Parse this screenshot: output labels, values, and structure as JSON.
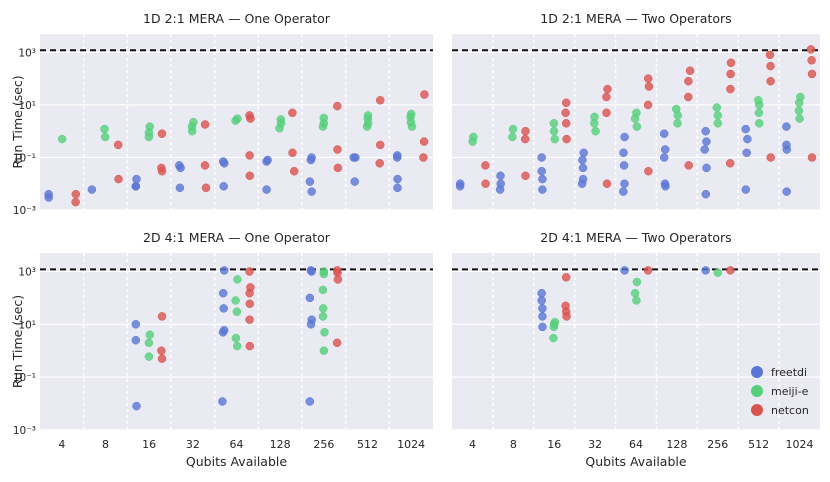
{
  "figure": {
    "threshold_line": 1200,
    "y_tick_labels": [
      "10⁻³",
      "10⁻¹",
      "10¹",
      "10³"
    ],
    "y_tick_values": [
      0.001,
      0.1,
      10,
      1000
    ],
    "ylim": [
      0.001,
      5000
    ],
    "x_categories": [
      "4",
      "8",
      "16",
      "32",
      "64",
      "128",
      "256",
      "512",
      "1024"
    ],
    "xlabel": "Qubits Available",
    "ylabel": "Run Time (sec)",
    "legend": [
      {
        "name": "freetdi",
        "color": "#5a76d4"
      },
      {
        "name": "meiji-e",
        "color": "#55d07a"
      },
      {
        "name": "netcon",
        "color": "#d9534f"
      }
    ]
  },
  "chart_data": [
    {
      "type": "scatter",
      "title": "1D 2:1 MERA — One Operator",
      "xlabel": "",
      "ylabel": "Run Time (sec)",
      "categories": [
        "4",
        "8",
        "16",
        "32",
        "64",
        "128",
        "256",
        "512",
        "1024"
      ],
      "series": [
        {
          "name": "freetdi",
          "values": [
            [
              0.004,
              0.003
            ],
            [
              0.006
            ],
            [
              0.008,
              0.008,
              0.015
            ],
            [
              0.04,
              0.05,
              0.007
            ],
            [
              0.06,
              0.07,
              0.008
            ],
            [
              0.07,
              0.08,
              0.006
            ],
            [
              0.08,
              0.1,
              0.012,
              0.005
            ],
            [
              0.1,
              0.1,
              0.012
            ],
            [
              0.1,
              0.12,
              0.015,
              0.007
            ]
          ]
        },
        {
          "name": "meiji-e",
          "values": [
            [
              0.5
            ],
            [
              1.2,
              0.6
            ],
            [
              1.5,
              0.9,
              0.6
            ],
            [
              2.2,
              1.5,
              1.0
            ],
            [
              3.0,
              2.5
            ],
            [
              2.8,
              2.0,
              1.3
            ],
            [
              3.2,
              2.0,
              1.5
            ],
            [
              4.0,
              3.0,
              2.0,
              1.5
            ],
            [
              4.5,
              3.5,
              2.2,
              1.5
            ]
          ]
        },
        {
          "name": "netcon",
          "values": [
            [
              0.004,
              0.002
            ],
            [
              0.3,
              0.015
            ],
            [
              0.8,
              0.04,
              0.03
            ],
            [
              1.8,
              0.05,
              0.007
            ],
            [
              4.0,
              3.0,
              0.12,
              0.02
            ],
            [
              5.0,
              0.15,
              0.03
            ],
            [
              9.0,
              0.2,
              0.04
            ],
            [
              15.0,
              0.3,
              0.06
            ],
            [
              25.0,
              0.4,
              0.1
            ]
          ]
        }
      ]
    },
    {
      "type": "scatter",
      "title": "1D 2:1 MERA — Two Operators",
      "xlabel": "",
      "ylabel": "",
      "categories": [
        "4",
        "8",
        "16",
        "32",
        "64",
        "128",
        "256",
        "512",
        "1024"
      ],
      "series": [
        {
          "name": "freetdi",
          "values": [
            [
              0.008,
              0.01
            ],
            [
              0.02,
              0.01,
              0.006
            ],
            [
              0.1,
              0.03,
              0.015,
              0.006
            ],
            [
              0.15,
              0.08,
              0.04,
              0.015,
              0.01
            ],
            [
              0.6,
              0.15,
              0.05,
              0.01,
              0.005
            ],
            [
              0.8,
              0.2,
              0.1,
              0.01,
              0.008
            ],
            [
              1.0,
              0.4,
              0.2,
              0.04,
              0.004
            ],
            [
              1.2,
              0.5,
              0.15,
              0.006
            ],
            [
              1.5,
              0.3,
              0.2,
              0.005
            ]
          ]
        },
        {
          "name": "meiji-e",
          "values": [
            [
              0.4,
              0.6
            ],
            [
              0.6,
              1.2
            ],
            [
              0.5,
              1.0,
              2.0
            ],
            [
              1.0,
              2.0,
              3.5
            ],
            [
              1.5,
              3.0,
              5.0
            ],
            [
              2.0,
              4.0,
              7.0
            ],
            [
              2.0,
              4.0,
              8.0
            ],
            [
              2.0,
              5.0,
              10.0,
              15.0
            ],
            [
              3.0,
              6.0,
              12.0,
              20.0
            ]
          ]
        },
        {
          "name": "netcon",
          "values": [
            [
              0.01,
              0.05
            ],
            [
              0.5,
              1.0,
              0.02
            ],
            [
              2.0,
              5.0,
              12.0,
              0.5
            ],
            [
              5.0,
              20.0,
              40.0,
              0.01
            ],
            [
              10.0,
              50.0,
              100.0,
              0.03
            ],
            [
              20.0,
              80.0,
              200.0,
              0.05
            ],
            [
              40.0,
              150.0,
              400.0,
              0.06
            ],
            [
              80.0,
              300.0,
              800.0,
              0.1
            ],
            [
              150.0,
              500.0,
              1300.0,
              0.1
            ]
          ]
        }
      ]
    },
    {
      "type": "scatter",
      "title": "2D 4:1 MERA — One Operator",
      "xlabel": "Qubits Available",
      "ylabel": "Run Time (sec)",
      "categories": [
        "4",
        "8",
        "16",
        "32",
        "64",
        "128",
        "256",
        "512",
        "1024"
      ],
      "series": [
        {
          "name": "freetdi",
          "values": [
            [],
            [],
            [
              10.0,
              2.5,
              0.008
            ],
            [],
            [
              1100.0,
              150.0,
              40.0,
              6.0,
              5.0,
              0.012
            ],
            [],
            [
              1100.0,
              1000.0,
              100.0,
              15.0,
              10.0,
              0.012
            ],
            [],
            []
          ]
        },
        {
          "name": "meiji-e",
          "values": [
            [],
            [],
            [
              4.0,
              2.0,
              0.6
            ],
            [],
            [
              500.0,
              80.0,
              30.0,
              3.0,
              1.5
            ],
            [],
            [
              1000.0,
              800.0,
              200.0,
              40.0,
              20.0,
              5.0,
              1.0
            ],
            [],
            []
          ]
        },
        {
          "name": "netcon",
          "values": [
            [],
            [],
            [
              20.0,
              1.0,
              0.5
            ],
            [],
            [
              1000.0,
              250.0,
              150.0,
              60.0,
              15.0,
              1.5
            ],
            [],
            [
              1100.0,
              900.0,
              500.0,
              2.0
            ],
            [],
            []
          ]
        }
      ]
    },
    {
      "type": "scatter",
      "title": "2D 4:1 MERA — Two Operators",
      "xlabel": "Qubits Available",
      "ylabel": "",
      "categories": [
        "4",
        "8",
        "16",
        "32",
        "64",
        "128",
        "256",
        "512",
        "1024"
      ],
      "series": [
        {
          "name": "freetdi",
          "values": [
            [],
            [],
            [
              150.0,
              80.0,
              40.0,
              20.0,
              8.0
            ],
            [],
            [
              1100.0
            ],
            [],
            [
              1100.0
            ],
            [],
            []
          ]
        },
        {
          "name": "meiji-e",
          "values": [
            [],
            [],
            [
              12.0,
              10.0,
              8.0,
              3.0
            ],
            [],
            [
              400.0,
              150.0,
              80.0
            ],
            [],
            [
              900.0
            ],
            [],
            []
          ]
        },
        {
          "name": "netcon",
          "values": [
            [],
            [],
            [
              600.0,
              50.0,
              30.0,
              20.0
            ],
            [],
            [
              1100.0
            ],
            [],
            [
              1100.0
            ],
            [],
            []
          ]
        }
      ]
    }
  ]
}
